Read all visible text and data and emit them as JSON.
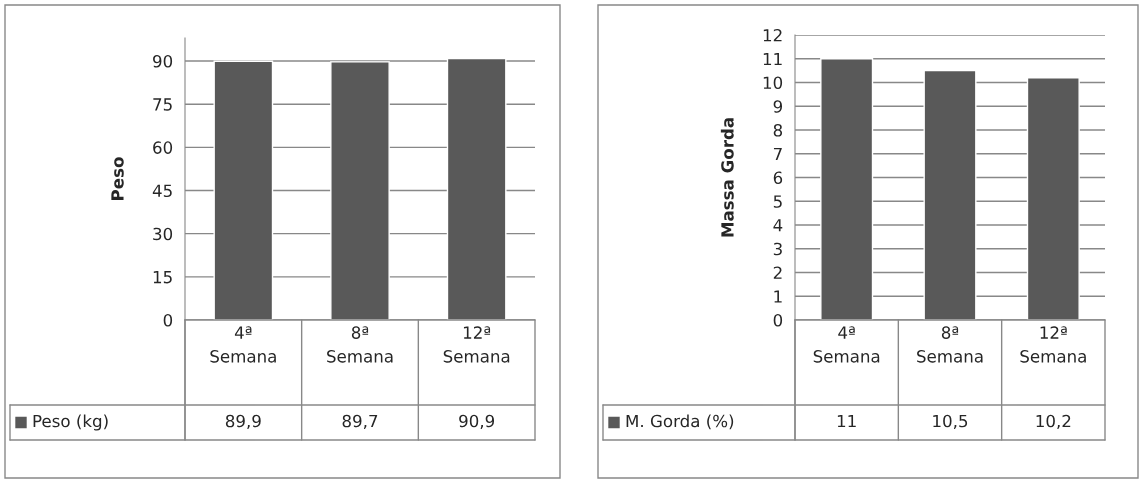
{
  "chart_data": [
    {
      "type": "bar",
      "ylabel": "Peso",
      "categories": [
        "4ª Semana",
        "8ª Semana",
        "12ª Semana"
      ],
      "series": [
        {
          "name": "Peso (kg)",
          "color": "#595959",
          "values": [
            89.9,
            89.7,
            90.9
          ],
          "value_labels": [
            "89,9",
            "89,7",
            "90,9"
          ]
        }
      ],
      "ylim": [
        0,
        98
      ],
      "yticks": [
        0,
        15,
        30,
        45,
        60,
        75,
        90
      ],
      "grid": "y"
    },
    {
      "type": "bar",
      "ylabel": "Massa Gorda",
      "categories": [
        "4ª Semana",
        "8ª Semana",
        "12ª Semana"
      ],
      "series": [
        {
          "name": "M. Gorda (%)",
          "color": "#595959",
          "values": [
            11,
            10.5,
            10.2
          ],
          "value_labels": [
            "11",
            "10,5",
            "10,2"
          ]
        }
      ],
      "ylim": [
        0,
        12
      ],
      "yticks": [
        0,
        1,
        2,
        3,
        4,
        5,
        6,
        7,
        8,
        9,
        10,
        11,
        12
      ],
      "grid": "y"
    }
  ]
}
